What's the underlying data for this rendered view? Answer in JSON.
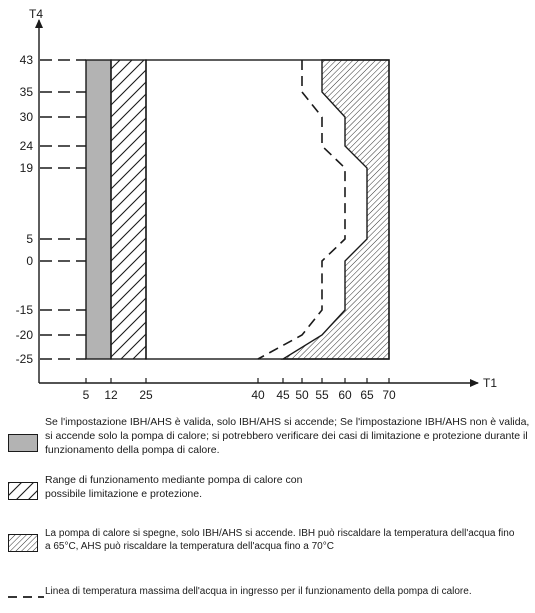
{
  "chart_data": {
    "type": "area",
    "xlabel": "T1",
    "ylabel": "T4",
    "x_ticks": [
      5,
      12,
      25,
      40,
      45,
      50,
      55,
      60,
      65,
      70
    ],
    "y_ticks": [
      43,
      35,
      30,
      24,
      19,
      5,
      0,
      -15,
      -20,
      -25
    ],
    "xlim": [
      5,
      70
    ],
    "ylim": [
      -25,
      43
    ],
    "regions": {
      "ibh_ahs_gray": {
        "x": [
          5,
          12
        ],
        "y": [
          -25,
          43
        ]
      },
      "heat_pump_hatch": {
        "x": [
          12,
          25
        ],
        "y": [
          -25,
          43
        ]
      },
      "heat_pump_off_dots": {
        "left_boundary": [
          [
            55,
            43
          ],
          [
            55,
            35
          ],
          [
            60,
            30
          ],
          [
            60,
            24
          ],
          [
            65,
            19
          ],
          [
            65,
            5
          ],
          [
            60,
            0
          ],
          [
            60,
            -15
          ],
          [
            55,
            -20
          ],
          [
            45,
            -25
          ]
        ],
        "right_boundary_x": 70
      }
    },
    "max_inlet_water_line": [
      [
        50,
        43
      ],
      [
        50,
        35
      ],
      [
        55,
        30
      ],
      [
        55,
        24
      ],
      [
        60,
        19
      ],
      [
        60,
        5
      ],
      [
        55,
        0
      ],
      [
        55,
        -15
      ],
      [
        50,
        -20
      ],
      [
        40,
        -25
      ]
    ]
  },
  "legend": [
    {
      "icon": "gray-box",
      "text": "Se l'impostazione IBH/AHS è valida, solo IBH/AHS si accende; Se l'impostazione IBH/AHS non è valida, si accende solo la pompa di calore; si potrebbero verificare dei casi di limitazione e protezione durante il funzionamento della pompa di calore."
    },
    {
      "icon": "diagonal-hatch",
      "text": "Range di funzionamento mediante pompa di calore con possibile limitazione e protezione."
    },
    {
      "icon": "dense-hatch",
      "text": "La pompa di calore si spegne, solo IBH/AHS si accende. IBH può riscaldare la temperatura dell'acqua fino a 65°C, AHS può riscaldare la temperatura dell'acqua fino a 70°C"
    },
    {
      "icon": "dashed-line",
      "text": "Linea di temperatura massima dell'acqua in ingresso per il funzionamento della pompa di calore."
    }
  ],
  "colors": {
    "gray_fill": "#b3b3b3",
    "line": "#1a1a1a"
  }
}
